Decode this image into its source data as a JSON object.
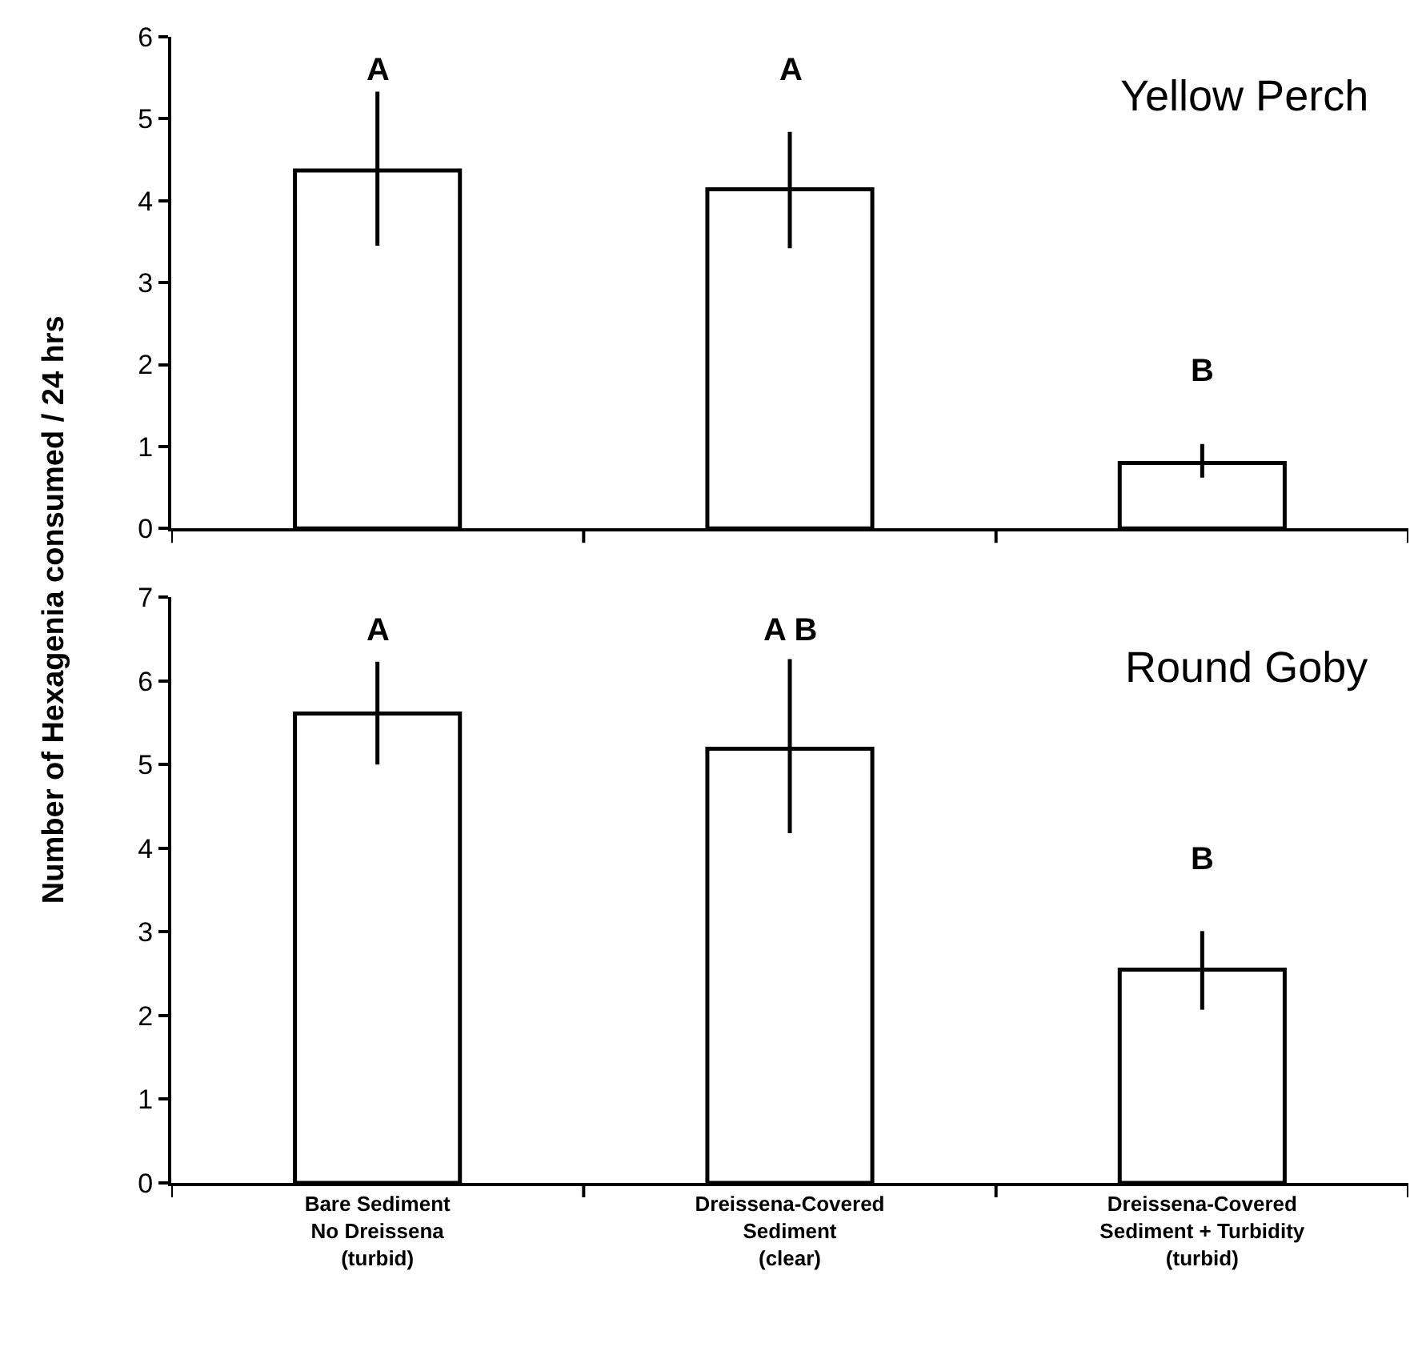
{
  "chart_data": [
    {
      "type": "bar",
      "title": "Yellow Perch",
      "ylabel": "Number of Hexagenia consumed / 24 hrs",
      "categories": [
        "Bare Sediment\nNo Dreissena\n(turbid)",
        "Dreissena-Covered\nSediment\n(clear)",
        "Dreissena-Covered\nSediment + Turbidity\n(turbid)"
      ],
      "series": [
        {
          "color": "#ffffff",
          "values": [
            4.37,
            4.14,
            0.8
          ],
          "errors": [
            [
              3.45,
              5.33
            ],
            [
              3.42,
              4.84
            ],
            [
              0.62,
              1.03
            ]
          ]
        }
      ],
      "ylim": [
        0,
        6
      ],
      "yticks": [
        0,
        1,
        2,
        3,
        4,
        5,
        6
      ],
      "tick_labels": "y",
      "annotations": [
        "A",
        "A",
        "B"
      ]
    },
    {
      "type": "bar",
      "title": "Round Goby",
      "categories": [
        "Bare Sediment\nNo Dreissena\n(turbid)",
        "Dreissena-Covered\nSediment\n(clear)",
        "Dreissena-Covered\nSediment + Turbidity\n(turbid)"
      ],
      "series": [
        {
          "color": "#ffffff",
          "values": [
            5.61,
            5.19,
            2.55
          ],
          "errors": [
            [
              5.0,
              6.23
            ],
            [
              4.18,
              6.26
            ],
            [
              2.07,
              3.01
            ]
          ]
        }
      ],
      "ylim": [
        0,
        7
      ],
      "yticks": [
        0,
        1,
        2,
        3,
        4,
        5,
        6,
        7
      ],
      "annotations": [
        "A",
        "A B",
        "B"
      ]
    }
  ]
}
